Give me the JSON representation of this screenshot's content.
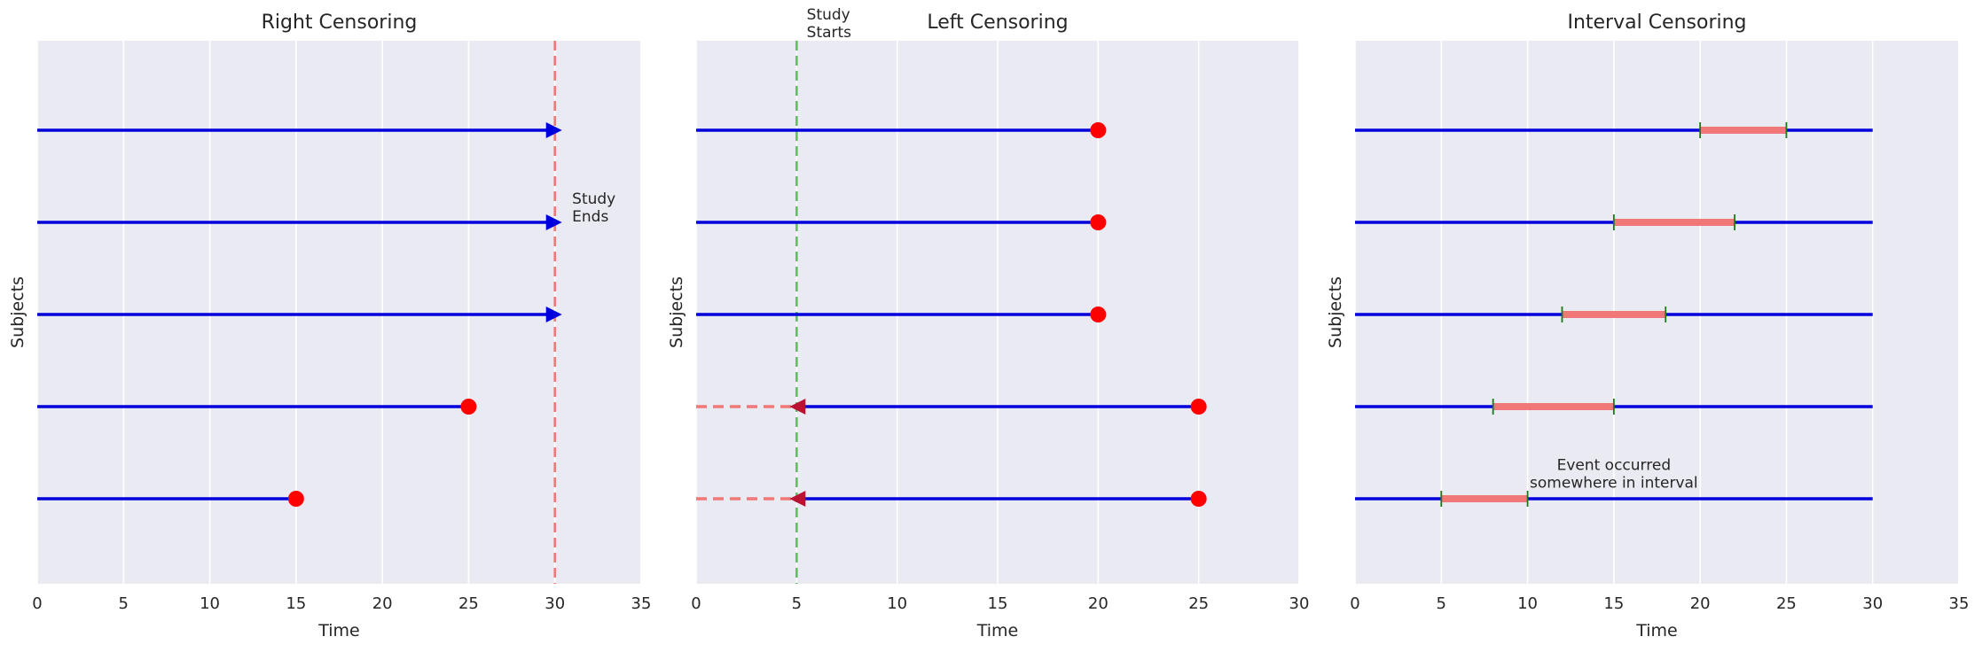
{
  "colors": {
    "panel_bg": "#eaeaf2",
    "grid": "#ffffff",
    "line": "#0000dd",
    "event": "#ff0000",
    "censor_line": "#f07878",
    "study_start": "#66bb66",
    "interval": "#f07878",
    "interval_tick": "#1a7a1a"
  },
  "chart_data": [
    {
      "type": "timeline",
      "title": "Right Censoring",
      "xlabel": "Time",
      "ylabel": "Subjects",
      "xlim": [
        0,
        35
      ],
      "xticks": [
        "0",
        "5",
        "10",
        "15",
        "20",
        "25",
        "30",
        "35"
      ],
      "grid": "vertical",
      "subjects": [
        {
          "start": 0,
          "end": 15,
          "marker": "event"
        },
        {
          "start": 0,
          "end": 25,
          "marker": "event"
        },
        {
          "start": 0,
          "end": 30,
          "marker": "censored-right"
        },
        {
          "start": 0,
          "end": 30,
          "marker": "censored-right"
        },
        {
          "start": 0,
          "end": 30,
          "marker": "censored-right"
        }
      ],
      "vline": {
        "x": 30,
        "style": "dashed",
        "color": "red"
      },
      "annotation": {
        "lines": [
          "Study",
          "Ends"
        ],
        "x": 31,
        "subject": 3
      }
    },
    {
      "type": "timeline",
      "title": "Left Censoring",
      "xlabel": "Time",
      "ylabel": "Subjects",
      "xlim": [
        0,
        30
      ],
      "xticks": [
        "0",
        "5",
        "10",
        "15",
        "20",
        "25",
        "30"
      ],
      "grid": "vertical",
      "subjects": [
        {
          "start": 5,
          "end": 25,
          "marker": "event",
          "censored_left": true
        },
        {
          "start": 5,
          "end": 25,
          "marker": "event",
          "censored_left": true
        },
        {
          "start": 0,
          "end": 20,
          "marker": "event"
        },
        {
          "start": 0,
          "end": 20,
          "marker": "event"
        },
        {
          "start": 0,
          "end": 20,
          "marker": "event"
        }
      ],
      "vline": {
        "x": 5,
        "style": "dashed",
        "color": "green"
      },
      "annotation": {
        "lines": [
          "Study",
          "Starts"
        ],
        "x": 5.5,
        "subject": 5
      }
    },
    {
      "type": "timeline",
      "title": "Interval Censoring",
      "xlabel": "Time",
      "ylabel": "Subjects",
      "xlim": [
        0,
        35
      ],
      "xticks": [
        "0",
        "5",
        "10",
        "15",
        "20",
        "25",
        "30",
        "35"
      ],
      "grid": "vertical",
      "subjects": [
        {
          "start": 0,
          "end": 30,
          "interval": [
            5,
            10
          ]
        },
        {
          "start": 0,
          "end": 30,
          "interval": [
            8,
            15
          ]
        },
        {
          "start": 0,
          "end": 30,
          "interval": [
            12,
            18
          ]
        },
        {
          "start": 0,
          "end": 30,
          "interval": [
            15,
            22
          ]
        },
        {
          "start": 0,
          "end": 30,
          "interval": [
            20,
            25
          ]
        }
      ],
      "annotation": {
        "lines": [
          "Event occurred",
          "somewhere in interval"
        ],
        "x": 15,
        "subject": 0.35
      }
    }
  ]
}
